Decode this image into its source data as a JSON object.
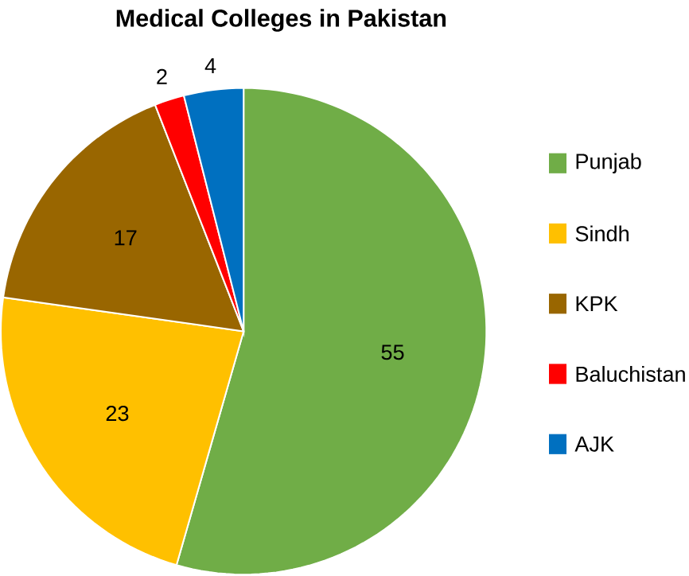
{
  "chart_data": {
    "type": "pie",
    "title": "Medical Colleges in Pakistan",
    "categories": [
      "Punjab",
      "Sindh",
      "KPK",
      "Baluchistan",
      "AJK"
    ],
    "values": [
      55,
      23,
      17,
      2,
      4
    ],
    "colors": [
      "#70ad47",
      "#ffc000",
      "#996600",
      "#ff0000",
      "#0070c0"
    ],
    "data_labels": true,
    "legend": "right"
  }
}
